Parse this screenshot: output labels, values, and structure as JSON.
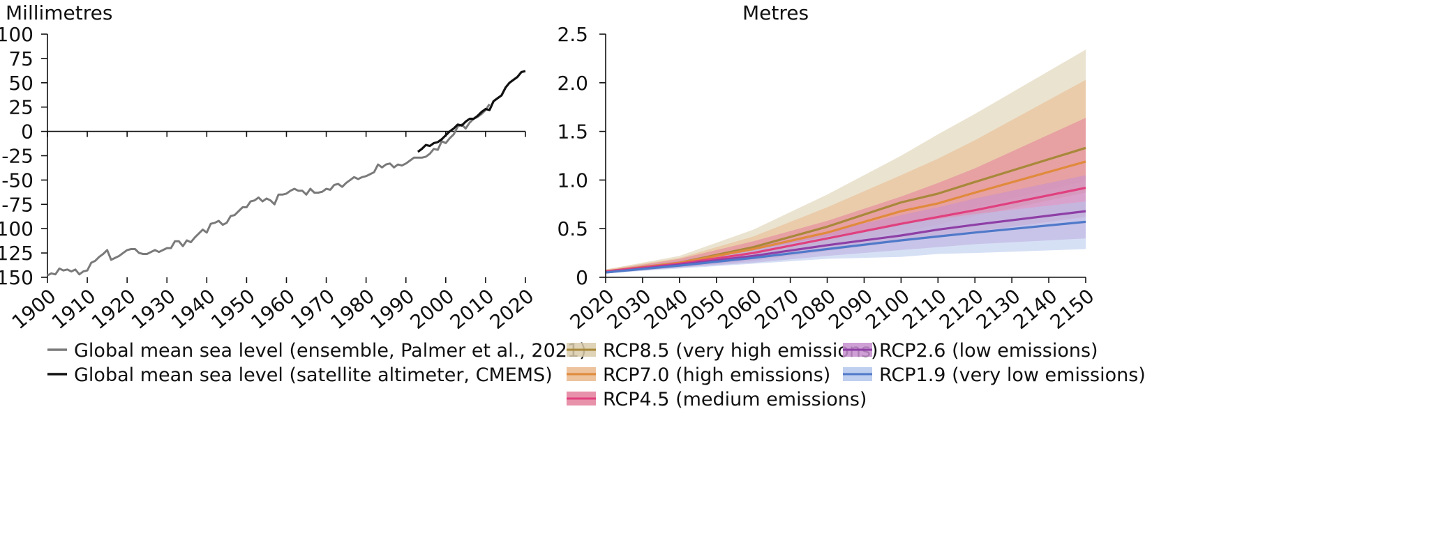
{
  "chart_data": [
    {
      "type": "line",
      "ylabel": "Millimetres",
      "xlim": [
        1900,
        2020
      ],
      "ylim": [
        -150,
        100
      ],
      "xticks": [
        1900,
        1910,
        1920,
        1930,
        1940,
        1950,
        1960,
        1970,
        1980,
        1990,
        2000,
        2010,
        2020
      ],
      "yticks": [
        100,
        75,
        50,
        25,
        0,
        -25,
        -50,
        -75,
        -100,
        -125,
        -150
      ],
      "zero_line": true,
      "series": [
        {
          "name": "Global mean sea level (ensemble, Palmer et al., 2021)",
          "color": "#7a7a7a",
          "x": [
            1900,
            1901,
            1902,
            1903,
            1904,
            1905,
            1906,
            1907,
            1908,
            1909,
            1910,
            1911,
            1912,
            1913,
            1914,
            1915,
            1916,
            1917,
            1918,
            1919,
            1920,
            1921,
            1922,
            1923,
            1924,
            1925,
            1926,
            1927,
            1928,
            1929,
            1930,
            1931,
            1932,
            1933,
            1934,
            1935,
            1936,
            1937,
            1938,
            1939,
            1940,
            1941,
            1942,
            1943,
            1944,
            1945,
            1946,
            1947,
            1948,
            1949,
            1950,
            1951,
            1952,
            1953,
            1954,
            1955,
            1956,
            1957,
            1958,
            1959,
            1960,
            1961,
            1962,
            1963,
            1964,
            1965,
            1966,
            1967,
            1968,
            1969,
            1970,
            1971,
            1972,
            1973,
            1974,
            1975,
            1976,
            1977,
            1978,
            1979,
            1980,
            1981,
            1982,
            1983,
            1984,
            1985,
            1986,
            1987,
            1988,
            1989,
            1990,
            1991,
            1992,
            1993,
            1994,
            1995,
            1996,
            1997,
            1998,
            1999,
            2000,
            2001,
            2002,
            2003,
            2004,
            2005,
            2006,
            2007,
            2008,
            2009,
            2010
          ],
          "values": [
            -148,
            -146,
            -147,
            -141,
            -143,
            -142,
            -144,
            -142,
            -147,
            -144,
            -143,
            -135,
            -133,
            -129,
            -126,
            -122,
            -132,
            -130,
            -128,
            -125,
            -122,
            -121,
            -121,
            -125,
            -126,
            -126,
            -124,
            -122,
            -124,
            -122,
            -120,
            -120,
            -113,
            -113,
            -118,
            -112,
            -114,
            -109,
            -105,
            -101,
            -104,
            -95,
            -94,
            -92,
            -96,
            -94,
            -87,
            -86,
            -82,
            -78,
            -78,
            -72,
            -71,
            -68,
            -72,
            -69,
            -71,
            -75,
            -65,
            -65,
            -64,
            -61,
            -59,
            -61,
            -61,
            -65,
            -59,
            -63,
            -63,
            -62,
            -59,
            -60,
            -55,
            -54,
            -57,
            -53,
            -50,
            -47,
            -49,
            -47,
            -46,
            -44,
            -42,
            -34,
            -37,
            -34,
            -33,
            -37,
            -34,
            -35,
            -33,
            -30,
            -27,
            -27,
            -27,
            -26,
            -23,
            -18,
            -19,
            -10,
            -12,
            -7,
            -3,
            5,
            7,
            3,
            9,
            13,
            15,
            18,
            22
          ],
          "extra_x": [
            2011
          ],
          "extra_values": [
            28
          ]
        },
        {
          "name": "Global mean sea level (satellite altimeter, CMEMS)",
          "color": "#111111",
          "x": [
            1993,
            1994,
            1995,
            1996,
            1997,
            1998,
            1999,
            2000,
            2001,
            2002,
            2003,
            2004,
            2005,
            2006,
            2007,
            2008,
            2009,
            2010,
            2011,
            2012,
            2013,
            2014,
            2015,
            2016,
            2017,
            2018,
            2019,
            2020
          ],
          "values": [
            -21,
            -18,
            -14,
            -15,
            -12,
            -11,
            -8,
            -4,
            0,
            3,
            7,
            6,
            10,
            13,
            13,
            16,
            20,
            23,
            22,
            31,
            34,
            37,
            45,
            50,
            53,
            56,
            61,
            62
          ]
        }
      ]
    },
    {
      "type": "line",
      "ylabel": "Metres",
      "xlim": [
        2020,
        2150
      ],
      "ylim": [
        0,
        2.5
      ],
      "xticks": [
        2020,
        2030,
        2040,
        2050,
        2060,
        2070,
        2080,
        2090,
        2100,
        2110,
        2120,
        2130,
        2140,
        2150
      ],
      "yticks": [
        "2.5",
        "2.0",
        "1.5",
        "1.0",
        "0.5",
        "0"
      ],
      "x": [
        2020,
        2040,
        2060,
        2080,
        2100,
        2110,
        2120,
        2150
      ],
      "series": [
        {
          "name": "RCP8.5 (very high emissions)",
          "color": "#a8883a",
          "band_color": "#d9ccaa",
          "values": [
            0.06,
            0.15,
            0.31,
            0.52,
            0.77,
            0.86,
            0.98,
            1.33
          ],
          "low": [
            0.05,
            0.11,
            0.22,
            0.36,
            0.53,
            0.62,
            0.72,
            0.99
          ],
          "high": [
            0.08,
            0.22,
            0.49,
            0.85,
            1.25,
            1.47,
            1.68,
            2.34
          ]
        },
        {
          "name": "RCP7.0 (high emissions)",
          "color": "#e08a3c",
          "band_color": "#eab98c",
          "values": [
            0.06,
            0.15,
            0.29,
            0.46,
            0.68,
            0.76,
            0.87,
            1.19
          ],
          "low": [
            0.05,
            0.11,
            0.2,
            0.32,
            0.47,
            0.54,
            0.63,
            0.87
          ],
          "high": [
            0.08,
            0.2,
            0.42,
            0.72,
            1.05,
            1.22,
            1.41,
            2.03
          ]
        },
        {
          "name": "RCP4.5 (medium emissions)",
          "color": "#e0407e",
          "band_color": "#e37e9b",
          "values": [
            0.06,
            0.14,
            0.25,
            0.4,
            0.55,
            0.62,
            0.69,
            0.92
          ],
          "low": [
            0.05,
            0.1,
            0.17,
            0.27,
            0.37,
            0.42,
            0.47,
            0.62
          ],
          "high": [
            0.07,
            0.19,
            0.37,
            0.58,
            0.83,
            0.97,
            1.12,
            1.64
          ]
        },
        {
          "name": "RCP2.6 (low emissions)",
          "color": "#8e3fa6",
          "band_color": "#c68fcf",
          "values": [
            0.05,
            0.13,
            0.22,
            0.33,
            0.43,
            0.49,
            0.54,
            0.68
          ],
          "low": [
            0.04,
            0.1,
            0.15,
            0.22,
            0.28,
            0.31,
            0.34,
            0.4
          ],
          "high": [
            0.07,
            0.17,
            0.31,
            0.47,
            0.64,
            0.72,
            0.81,
            1.05
          ]
        },
        {
          "name": "RCP1.9 (very low emissions)",
          "color": "#4f79c9",
          "band_color": "#b4c7ec",
          "values": [
            0.05,
            0.12,
            0.2,
            0.29,
            0.38,
            0.42,
            0.46,
            0.57
          ],
          "low": [
            0.04,
            0.09,
            0.14,
            0.19,
            0.21,
            0.24,
            0.25,
            0.29
          ],
          "high": [
            0.06,
            0.16,
            0.28,
            0.42,
            0.55,
            0.6,
            0.65,
            0.78
          ]
        }
      ]
    }
  ]
}
